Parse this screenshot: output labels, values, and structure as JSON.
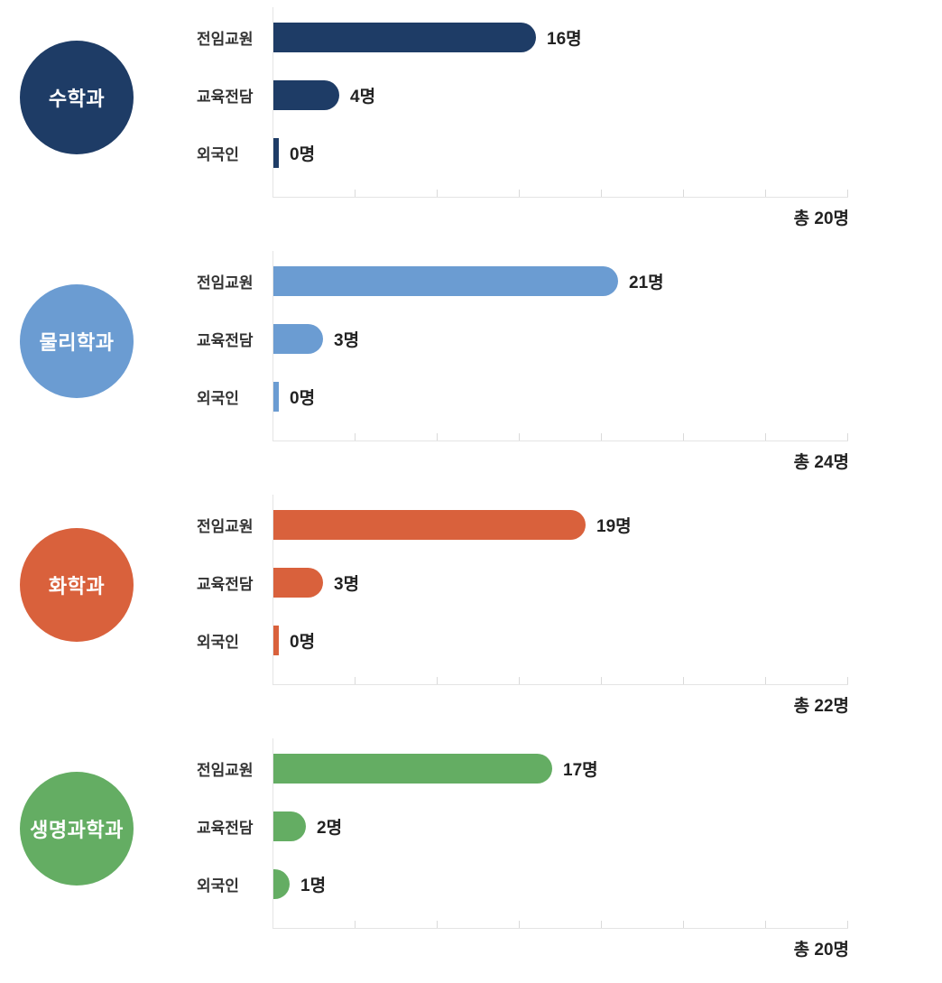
{
  "unit": "명",
  "categories": [
    "전임교원",
    "교육전담",
    "외국인"
  ],
  "colors": {
    "math": "#1e3c66",
    "physics": "#6b9cd2",
    "chemistry": "#d9613c",
    "life_science": "#64ad63",
    "axis": "#e4e4e4",
    "label_text": "#333333",
    "value_text": "#222222",
    "circle_text": "#ffffff"
  },
  "sections": [
    {
      "department": "수학과",
      "color": "#1e3c66",
      "total_label": "총 20명",
      "bars": [
        {
          "label": "전임교원",
          "value": 16,
          "value_label": "16명"
        },
        {
          "label": "교육전담",
          "value": 4,
          "value_label": "4명"
        },
        {
          "label": "외국인",
          "value": 0,
          "value_label": "0명"
        }
      ]
    },
    {
      "department": "물리학과",
      "color": "#6b9cd2",
      "total_label": "총 24명",
      "bars": [
        {
          "label": "전임교원",
          "value": 21,
          "value_label": "21명"
        },
        {
          "label": "교육전담",
          "value": 3,
          "value_label": "3명"
        },
        {
          "label": "외국인",
          "value": 0,
          "value_label": "0명"
        }
      ]
    },
    {
      "department": "화학과",
      "color": "#d9613c",
      "total_label": "총 22명",
      "bars": [
        {
          "label": "전임교원",
          "value": 19,
          "value_label": "19명"
        },
        {
          "label": "교육전담",
          "value": 3,
          "value_label": "3명"
        },
        {
          "label": "외국인",
          "value": 0,
          "value_label": "0명"
        }
      ]
    },
    {
      "department": "생명과학과",
      "color": "#64ad63",
      "total_label": "총 20명",
      "bars": [
        {
          "label": "전임교원",
          "value": 17,
          "value_label": "17명"
        },
        {
          "label": "교육전담",
          "value": 2,
          "value_label": "2명"
        },
        {
          "label": "외국인",
          "value": 1,
          "value_label": "1명"
        }
      ]
    }
  ],
  "chart_data": [
    {
      "type": "bar",
      "orientation": "horizontal",
      "title": "수학과",
      "categories": [
        "전임교원",
        "교육전담",
        "외국인"
      ],
      "values": [
        16,
        4,
        0
      ],
      "value_labels": [
        "16명",
        "4명",
        "0명"
      ],
      "total": 20,
      "total_label": "총 20명",
      "xlim": [
        0,
        35
      ],
      "tick_interval": 5,
      "grid": false,
      "legend": false,
      "bar_color": "#1e3c66"
    },
    {
      "type": "bar",
      "orientation": "horizontal",
      "title": "물리학과",
      "categories": [
        "전임교원",
        "교육전담",
        "외국인"
      ],
      "values": [
        21,
        3,
        0
      ],
      "value_labels": [
        "21명",
        "3명",
        "0명"
      ],
      "total": 24,
      "total_label": "총 24명",
      "xlim": [
        0,
        35
      ],
      "tick_interval": 5,
      "grid": false,
      "legend": false,
      "bar_color": "#6b9cd2"
    },
    {
      "type": "bar",
      "orientation": "horizontal",
      "title": "화학과",
      "categories": [
        "전임교원",
        "교육전담",
        "외국인"
      ],
      "values": [
        19,
        3,
        0
      ],
      "value_labels": [
        "19명",
        "3명",
        "0명"
      ],
      "total": 22,
      "total_label": "총 22명",
      "xlim": [
        0,
        35
      ],
      "tick_interval": 5,
      "grid": false,
      "legend": false,
      "bar_color": "#d9613c"
    },
    {
      "type": "bar",
      "orientation": "horizontal",
      "title": "생명과학과",
      "categories": [
        "전임교원",
        "교육전담",
        "외국인"
      ],
      "values": [
        17,
        2,
        1
      ],
      "value_labels": [
        "17명",
        "2명",
        "1명"
      ],
      "total": 20,
      "total_label": "총 20명",
      "xlim": [
        0,
        35
      ],
      "tick_interval": 5,
      "grid": false,
      "legend": false,
      "bar_color": "#64ad63"
    }
  ]
}
